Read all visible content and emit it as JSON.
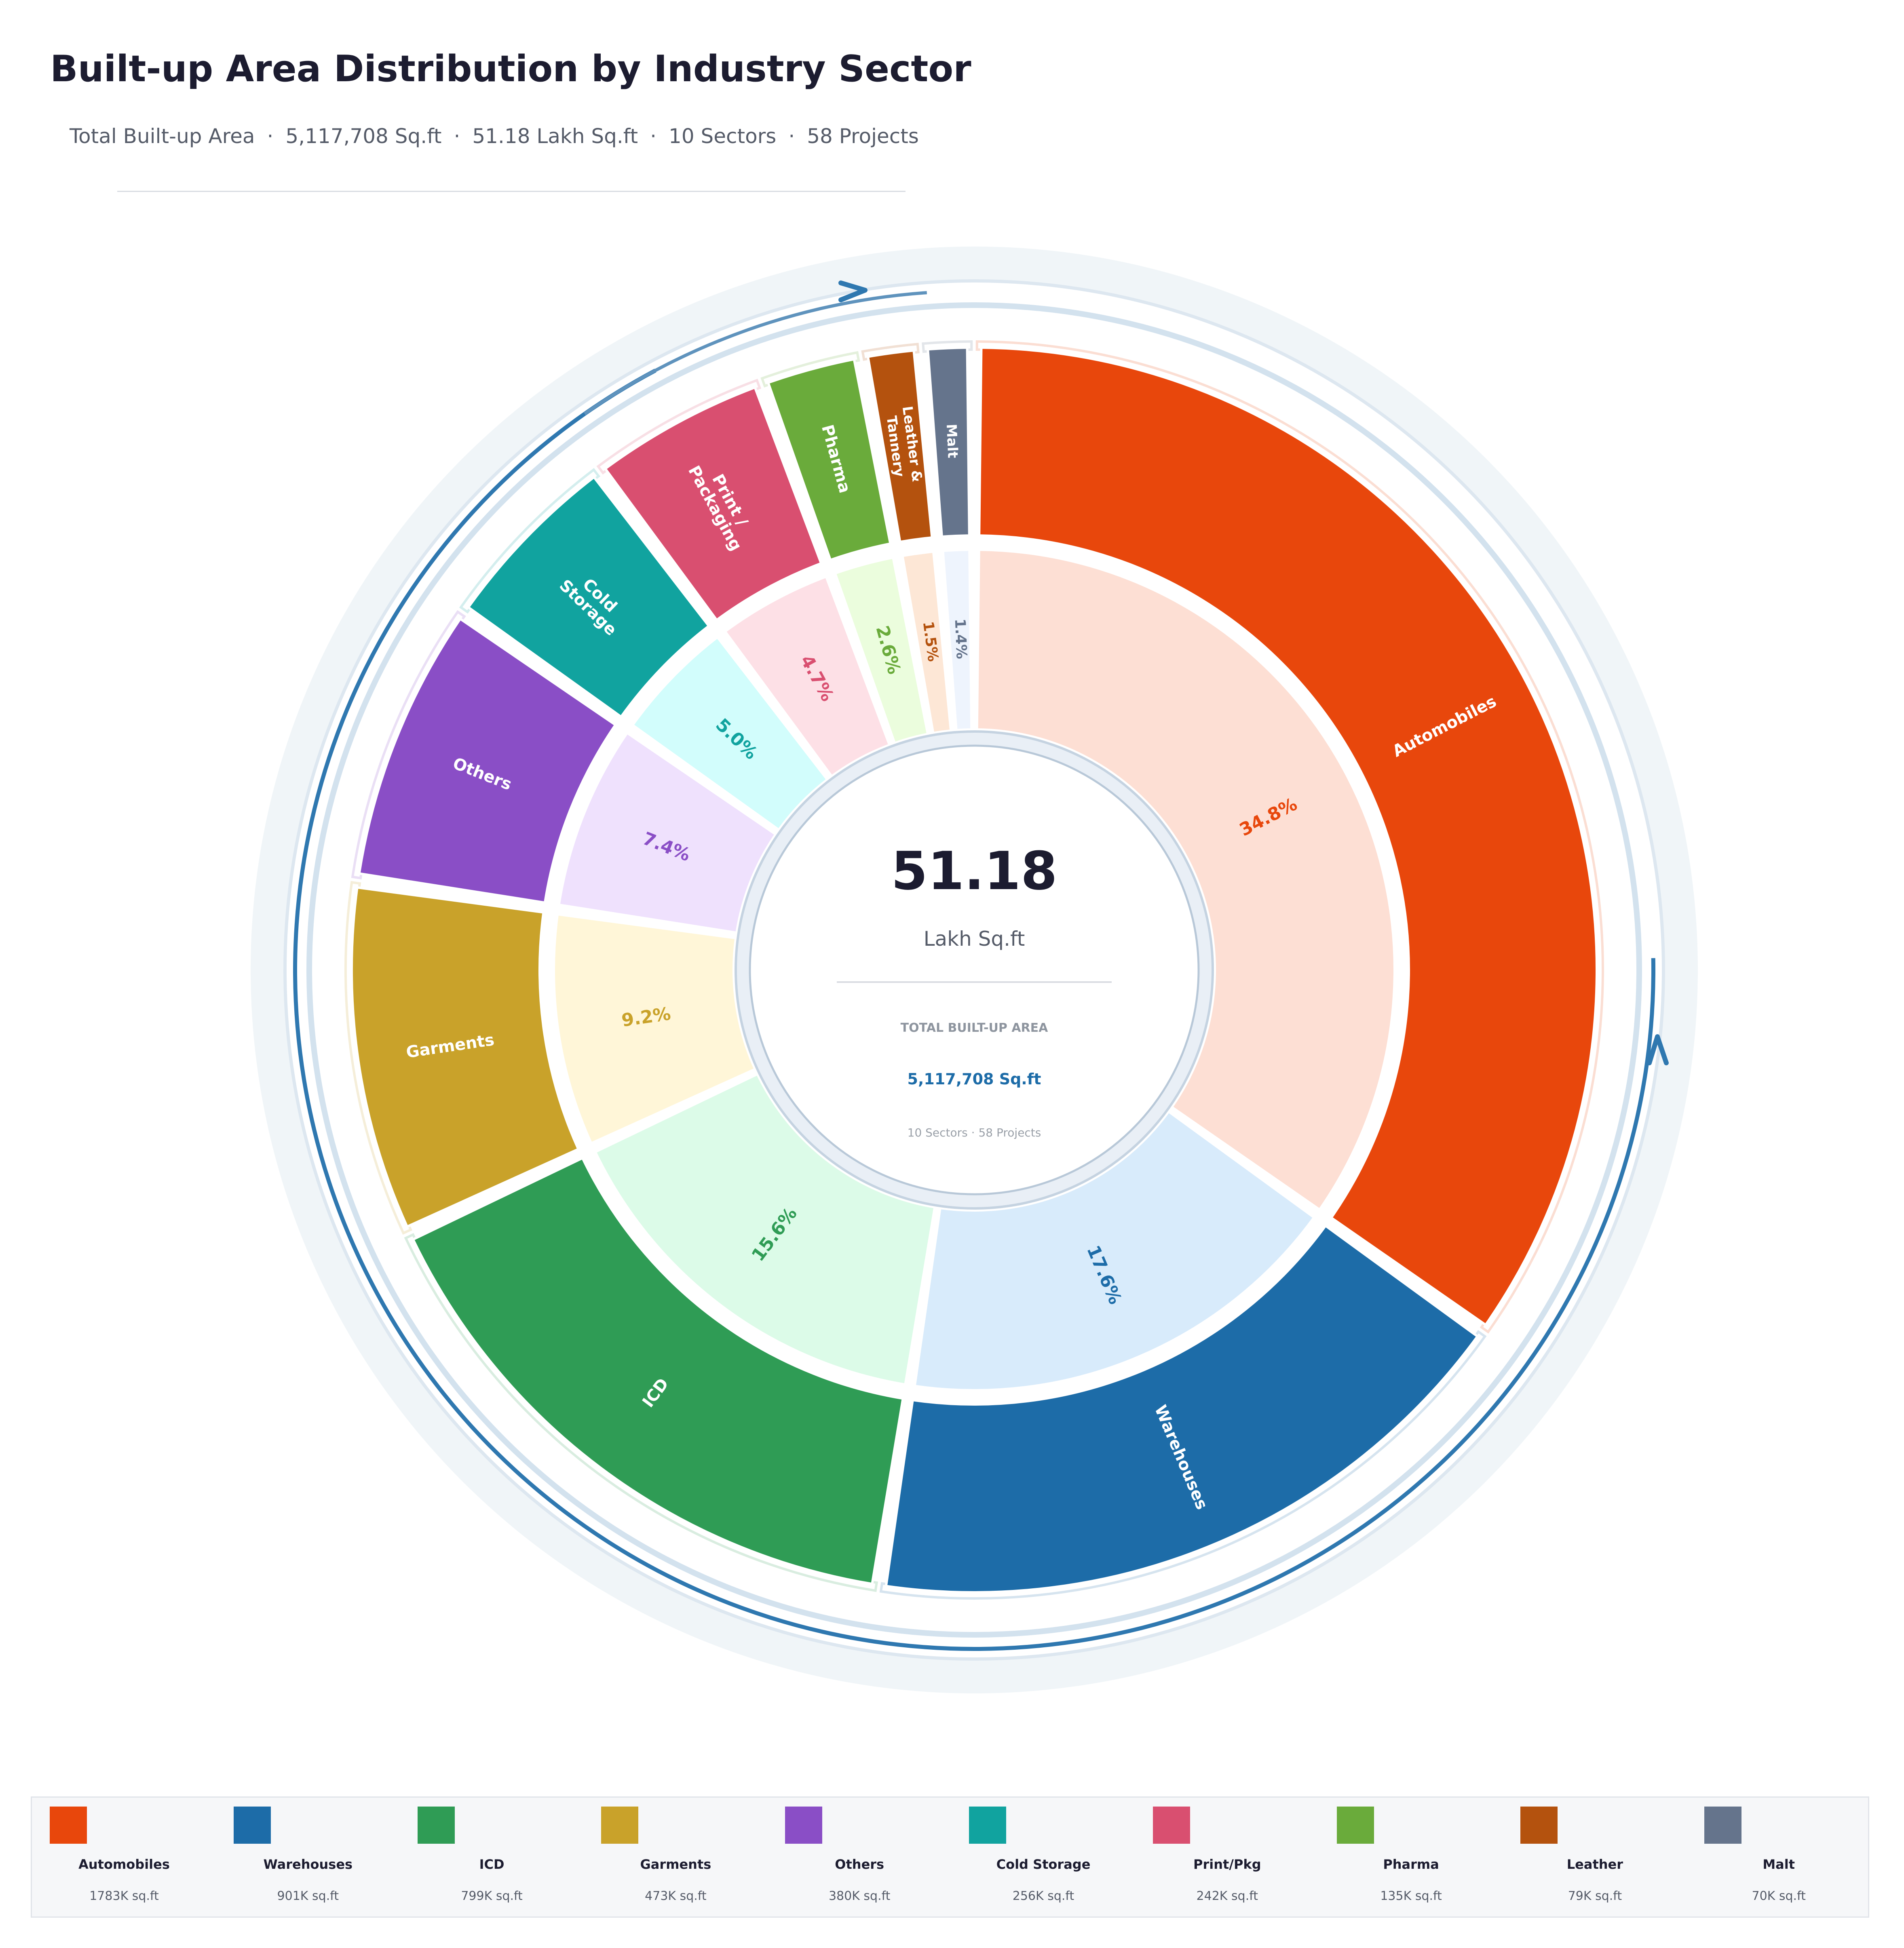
{
  "header": {
    "title": "Built-up Area Distribution by Industry Sector",
    "subtitle_parts": [
      "Total Built-up Area",
      "5,117,708 Sq.ft",
      "51.18 Lakh Sq.ft",
      "10 Sectors",
      "58 Projects"
    ],
    "separator": "·"
  },
  "center": {
    "value": "51.18",
    "unit": "Lakh Sq.ft",
    "caption": "TOTAL BUILT-UP AREA",
    "total": "5,117,708 Sq.ft",
    "meta": "10 Sectors  ·  58 Projects"
  },
  "colors": {
    "center_value": "#1c1c30",
    "center_total": "#1d6ca8",
    "arc_accent": "#2f78b0"
  },
  "chart_data": {
    "type": "pie",
    "variant": "nested donut",
    "title": "Built-up Area Distribution by Industry Sector",
    "value_unit": "Sq.ft",
    "start_angle_deg": 0,
    "direction": "clockwise",
    "series": [
      {
        "name": "Automobiles",
        "outer_label": "Automobiles",
        "value": 1783000,
        "pct": "34.8%",
        "color": "#e8470c",
        "light": "#fddfd4",
        "legend_value": "1783K sq.ft"
      },
      {
        "name": "Warehouses",
        "outer_label": "Warehouses",
        "value": 901000,
        "pct": "17.6%",
        "color": "#1d6ca8",
        "light": "#d8ebfb",
        "legend_value": "901K sq.ft"
      },
      {
        "name": "ICD",
        "outer_label": "ICD",
        "value": 799000,
        "pct": "15.6%",
        "color": "#2f9c55",
        "light": "#dcfbe8",
        "legend_value": "799K sq.ft"
      },
      {
        "name": "Garments",
        "outer_label": "Garments",
        "value": 473000,
        "pct": "9.2%",
        "color": "#c9a22a",
        "light": "#fff6d8",
        "legend_value": "473K sq.ft"
      },
      {
        "name": "Others",
        "outer_label": "Others",
        "value": 380000,
        "pct": "7.4%",
        "color": "#8a4ec6",
        "light": "#efe1fd",
        "legend_value": "380K sq.ft"
      },
      {
        "name": "Cold Storage",
        "outer_label": "Cold\nStorage",
        "value": 256000,
        "pct": "5.0%",
        "color": "#11a39f",
        "light": "#d2fdfc",
        "legend_value": "256K sq.ft"
      },
      {
        "name": "Print/Pkg",
        "outer_label": "Print /\nPackaging",
        "value": 242000,
        "pct": "4.7%",
        "color": "#d94f70",
        "light": "#fde0e6",
        "legend_value": "242K sq.ft"
      },
      {
        "name": "Pharma",
        "outer_label": "Pharma",
        "value": 135000,
        "pct": "2.6%",
        "color": "#6aab3b",
        "light": "#ebfddd",
        "legend_value": "135K sq.ft"
      },
      {
        "name": "Leather",
        "outer_label": "Leather &\nTannery",
        "value": 79000,
        "pct": "1.5%",
        "color": "#b4520e",
        "light": "#fde7d6",
        "legend_value": "79K sq.ft"
      },
      {
        "name": "Malt",
        "outer_label": "Malt",
        "value": 70000,
        "pct": "1.4%",
        "color": "#65748c",
        "light": "#eef4fd",
        "legend_value": "70K sq.ft"
      }
    ]
  }
}
